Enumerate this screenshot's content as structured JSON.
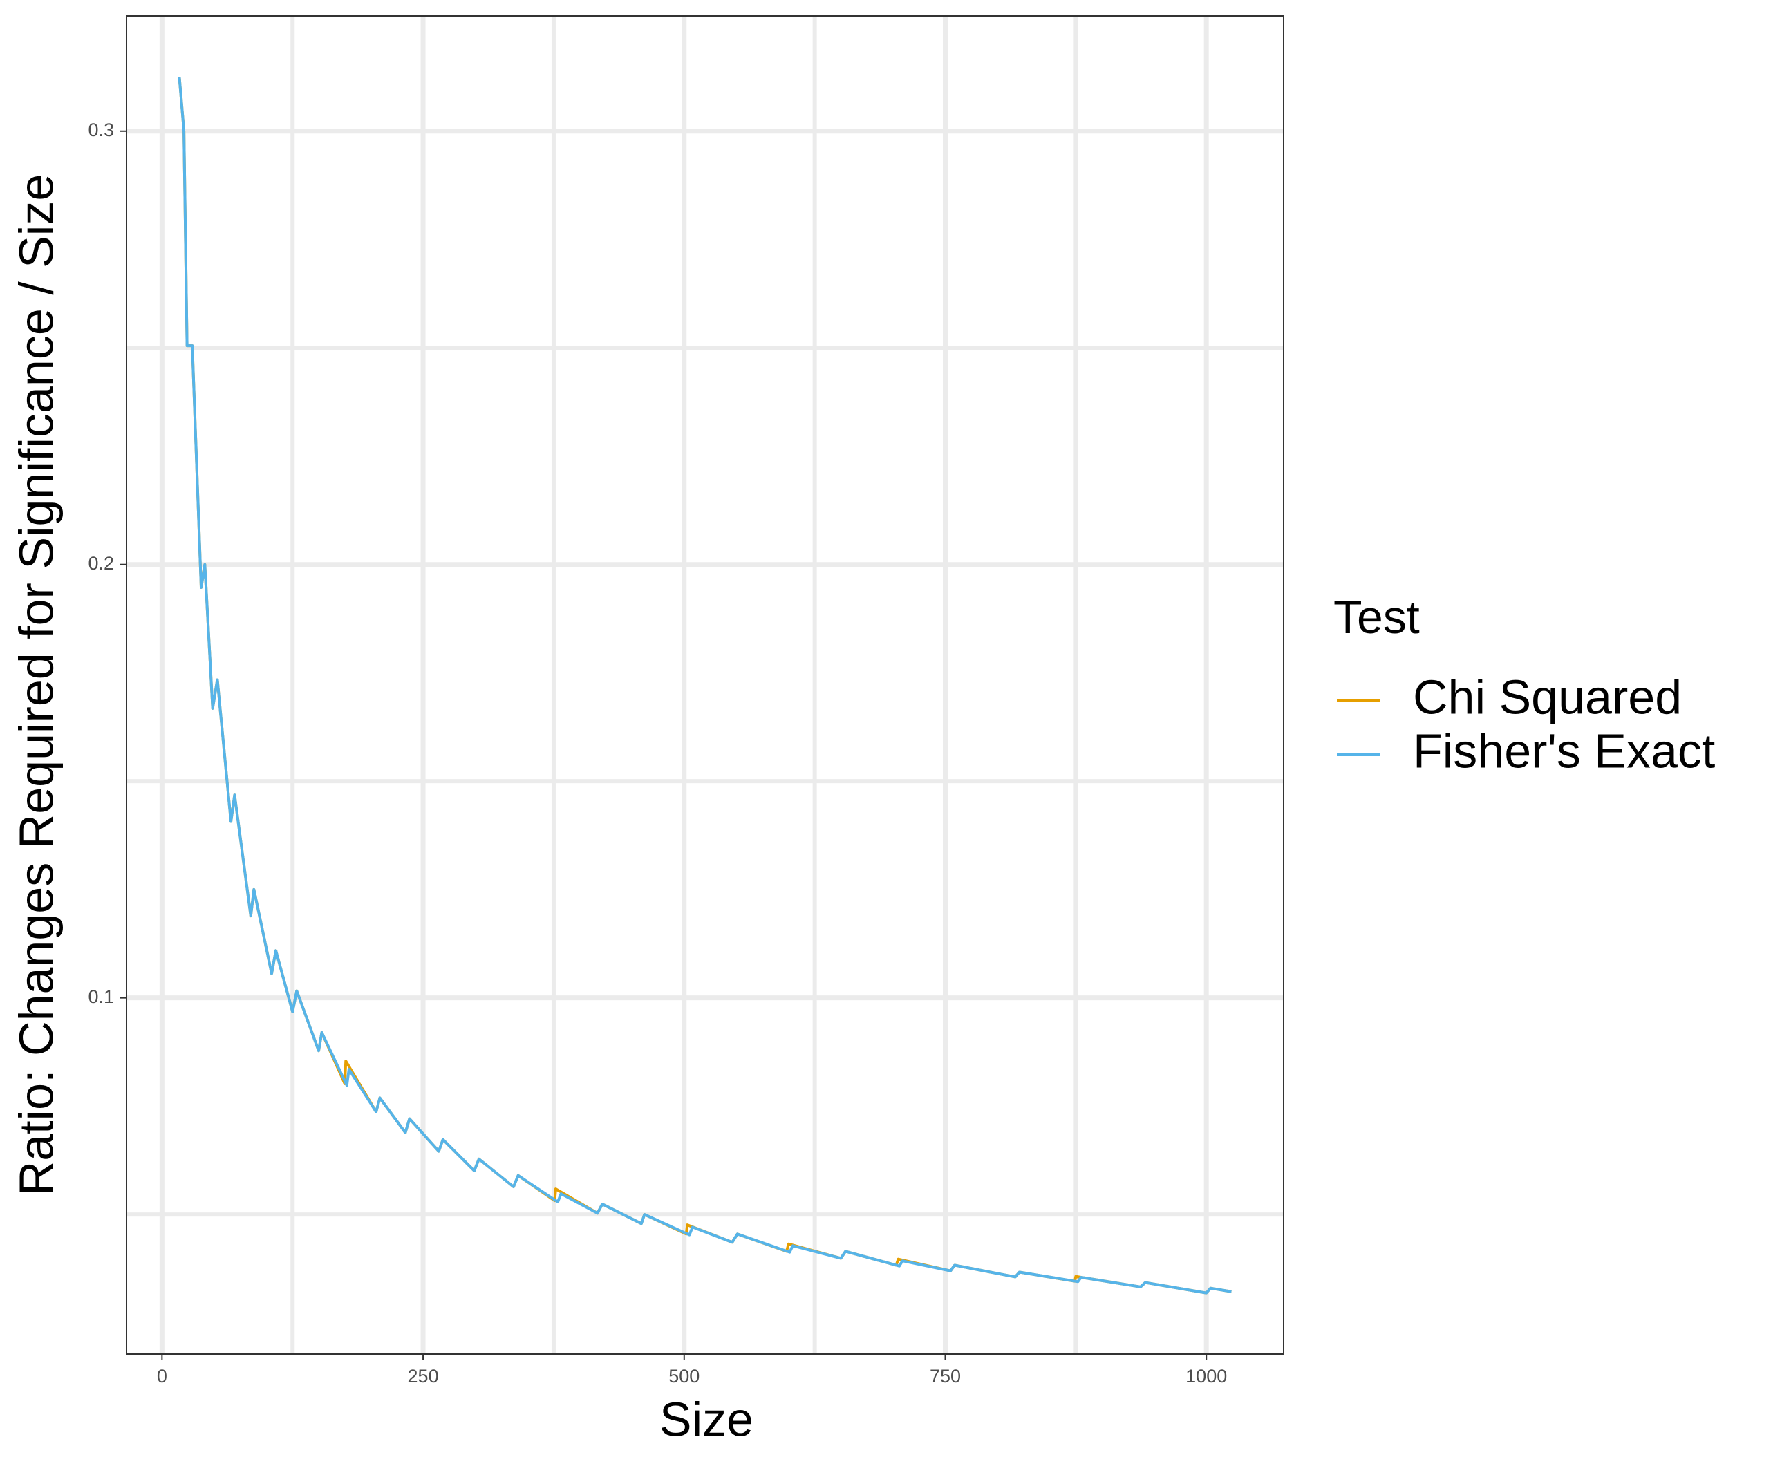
{
  "chart_data": {
    "type": "line",
    "x_label": "Size",
    "y_label": "Ratio: Changes Required for Significance / Size",
    "legend_title": "Test",
    "legend_position": "right",
    "grid": true,
    "xlim": [
      -34,
      1074
    ],
    "ylim": [
      0.0178,
      0.3266
    ],
    "xticks": [
      0,
      250,
      500,
      750,
      1000
    ],
    "yticks": [
      0.1,
      0.2,
      0.3
    ],
    "x_minor_gridlines": [
      125,
      375,
      625,
      875
    ],
    "y_minor_gridlines": [
      0.05,
      0.15,
      0.25
    ],
    "series": [
      {
        "name": "Chi Squared",
        "color": "#E69F00",
        "x": [
          16.6,
          21,
          24,
          29,
          37.5,
          41,
          48.5,
          53,
          66,
          69.5,
          85,
          88,
          105,
          109,
          125,
          129,
          150,
          153,
          175,
          176,
          205,
          208.6,
          233,
          237,
          265,
          269,
          299,
          303.5,
          336.6,
          341,
          376,
          377,
          417,
          421.6,
          459,
          462,
          502,
          503,
          546,
          551,
          598,
          600,
          650,
          654.5,
          703,
          705,
          755,
          759,
          817,
          821,
          874,
          875,
          937,
          941.5,
          1000,
          1004,
          1024
        ],
        "values": [
          0.3125,
          0.3,
          0.2505,
          0.2505,
          0.1947,
          0.2,
          0.1668,
          0.1734,
          0.1407,
          0.1468,
          0.1189,
          0.125,
          0.1056,
          0.1109,
          0.0968,
          0.1016,
          0.0878,
          0.092,
          0.0802,
          0.0854,
          0.0737,
          0.0769,
          0.0689,
          0.0721,
          0.0646,
          0.0673,
          0.0601,
          0.0628,
          0.0564,
          0.059,
          0.0532,
          0.0559,
          0.0503,
          0.0524,
          0.0479,
          0.05,
          0.0455,
          0.0476,
          0.0436,
          0.0455,
          0.0415,
          0.0432,
          0.0399,
          0.0415,
          0.0383,
          0.0397,
          0.037,
          0.0383,
          0.0356,
          0.0367,
          0.0346,
          0.0357,
          0.0333,
          0.0343,
          0.0319,
          0.033,
          0.0322
        ]
      },
      {
        "name": "Fisher's Exact",
        "color": "#56B4E9",
        "x": [
          16.6,
          21,
          24,
          29,
          37.5,
          41,
          48.5,
          53,
          66,
          69.5,
          85,
          88,
          105,
          109,
          125,
          129,
          150,
          153,
          177,
          179,
          205,
          208.6,
          233,
          237,
          265,
          269,
          299,
          303.5,
          336.6,
          341,
          379,
          382,
          417,
          421.6,
          459,
          462,
          505,
          508,
          546,
          551,
          601,
          604,
          650,
          654.5,
          706,
          709,
          755,
          759,
          817,
          821,
          877,
          880,
          937,
          941.5,
          1000,
          1004,
          1024
        ],
        "values": [
          0.3125,
          0.3,
          0.2505,
          0.2505,
          0.1947,
          0.2,
          0.1668,
          0.1734,
          0.1407,
          0.1468,
          0.1189,
          0.125,
          0.1056,
          0.1109,
          0.0968,
          0.1016,
          0.0878,
          0.092,
          0.0798,
          0.0835,
          0.0737,
          0.0769,
          0.0689,
          0.0721,
          0.0646,
          0.0673,
          0.0601,
          0.0628,
          0.0564,
          0.059,
          0.0529,
          0.0548,
          0.0503,
          0.0524,
          0.0479,
          0.05,
          0.0453,
          0.0471,
          0.0436,
          0.0455,
          0.0413,
          0.0428,
          0.0399,
          0.0415,
          0.0381,
          0.0393,
          0.037,
          0.0383,
          0.0356,
          0.0367,
          0.0345,
          0.0355,
          0.0333,
          0.0343,
          0.0319,
          0.033,
          0.0322
        ]
      }
    ]
  }
}
